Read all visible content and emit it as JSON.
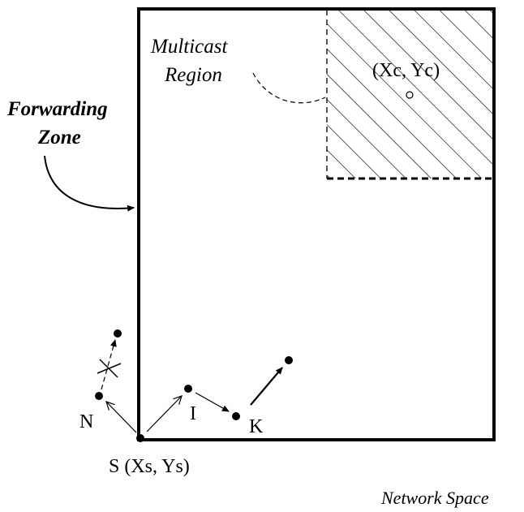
{
  "labels": {
    "multicast_region_line1": "Multicast",
    "multicast_region_line2": "Region",
    "forwarding_zone_line1": "Forwarding",
    "forwarding_zone_line2": "Zone",
    "center": "(Xc, Yc)",
    "source": "S (Xs, Ys)",
    "node_n": "N",
    "node_i": "I",
    "node_k": "K",
    "network_space": "Network Space"
  },
  "colors": {
    "stroke": "#000000",
    "background": "#ffffff"
  }
}
